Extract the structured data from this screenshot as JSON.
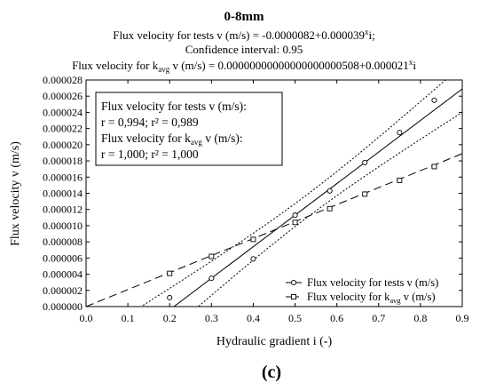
{
  "chart_data": {
    "type": "scatter",
    "title": "0-8mm",
    "subtitle_lines": [
      {
        "text": "Flux velocity for tests v (m/s) = -0.0000082+0.000039",
        "sup": "x",
        "tail": "i;"
      },
      {
        "text": "Confidence interval: 0.95",
        "sup": "",
        "tail": ""
      },
      {
        "text": "Flux velocity for k",
        "sub": "avg",
        "text2": " v (m/s) = 0.00000000000000000000508+0.000021",
        "sup": "x",
        "tail": "i"
      }
    ],
    "xlabel": "Hydraulic gradient i (-)",
    "ylabel": "Flux velocity v (m/s)",
    "xlim": [
      0.0,
      0.9
    ],
    "ylim": [
      0.0,
      2.8e-05
    ],
    "x_ticks": [
      "0.0",
      "0.1",
      "0.2",
      "0.3",
      "0.4",
      "0.5",
      "0.6",
      "0.7",
      "0.8",
      "0.9"
    ],
    "y_ticks": [
      "0.000000",
      "0.000002",
      "0.000004",
      "0.000006",
      "0.000008",
      "0.000010",
      "0.000012",
      "0.000014",
      "0.000016",
      "0.000018",
      "0.000020",
      "0.000022",
      "0.000024",
      "0.000026",
      "0.000028"
    ],
    "grid": false,
    "stats_box": {
      "line1": "Flux velocity for tests v (m/s):",
      "line2": "r = 0,994; r² = 0,989",
      "line3a": "Flux velocity for k",
      "line3sub": "avg",
      "line3b": " v (m/s):",
      "line4": "r = 1,000; r² = 1,000"
    },
    "legend": {
      "position": "bottom-right",
      "entries": [
        {
          "name": "Flux velocity for tests v (m/s)",
          "marker": "circle",
          "line": "solid"
        },
        {
          "name_a": "Flux velocity for k",
          "name_sub": "avg",
          "name_b": " v (m/s)",
          "marker": "square",
          "line": "dashed"
        }
      ]
    },
    "series": [
      {
        "name": "Flux velocity for tests v (m/s)",
        "marker": "circle",
        "x": [
          0.2,
          0.3,
          0.4,
          0.5,
          0.583,
          0.667,
          0.75,
          0.833
        ],
        "y": [
          1.1e-06,
          3.5e-06,
          5.9e-06,
          1.13e-05,
          1.43e-05,
          1.78e-05,
          2.15e-05,
          2.55e-05
        ],
        "fit": {
          "intercept": -8.2e-06,
          "slope": 3.9e-05,
          "style": "solid"
        },
        "confidence_band": {
          "level": 0.95,
          "style": "dotted"
        }
      },
      {
        "name": "Flux velocity for kavg v (m/s)",
        "marker": "square",
        "x": [
          0.2,
          0.3,
          0.4,
          0.5,
          0.583,
          0.667,
          0.75,
          0.833
        ],
        "y": [
          4.1e-06,
          6.2e-06,
          8.3e-06,
          1.04e-05,
          1.21e-05,
          1.39e-05,
          1.56e-05,
          1.73e-05
        ],
        "fit": {
          "intercept": 0.0,
          "slope": 2.1e-05,
          "style": "dashed"
        }
      }
    ],
    "caption": "(c)"
  }
}
